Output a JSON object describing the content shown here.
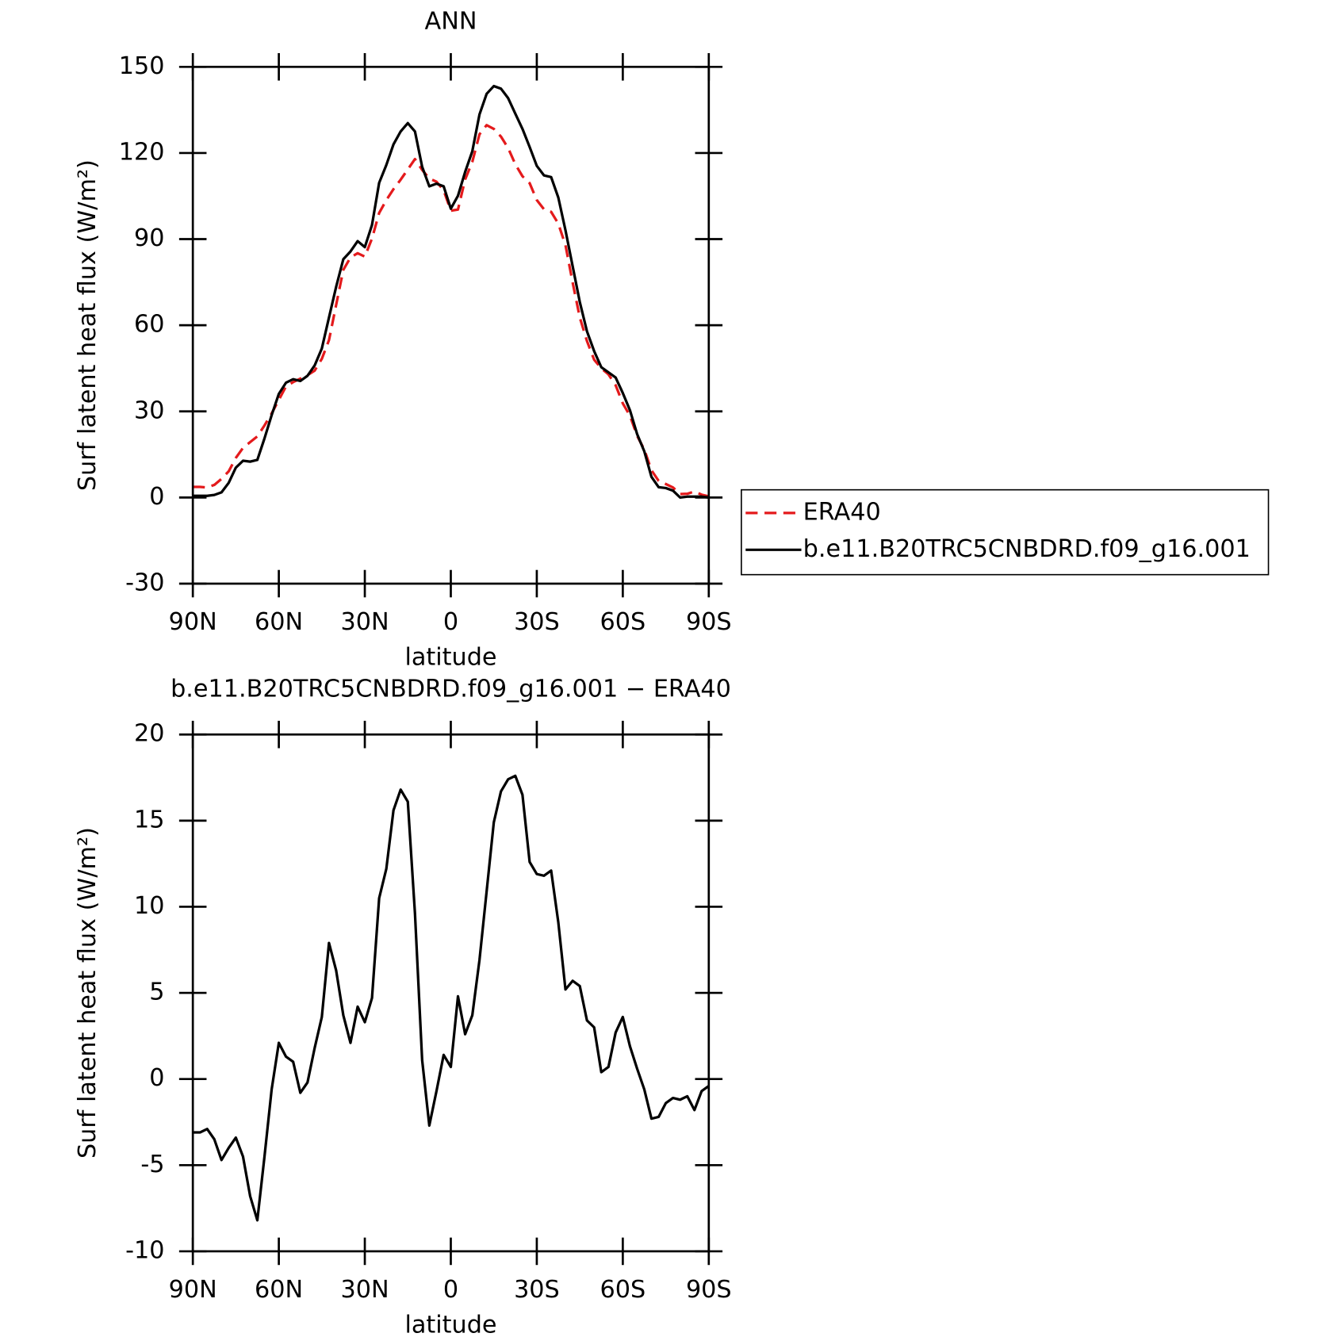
{
  "chart_data": [
    {
      "type": "line",
      "title": "ANN",
      "ylabel": "Surf latent heat flux (W/m²)",
      "xlabel": "latitude",
      "x": [
        90,
        87.5,
        85,
        82.5,
        80,
        77.5,
        75,
        72.5,
        70,
        67.5,
        65,
        62.5,
        60,
        57.5,
        55,
        52.5,
        50,
        47.5,
        45,
        42.5,
        40,
        37.5,
        35,
        32.5,
        30,
        27.5,
        25,
        22.5,
        20,
        17.5,
        15,
        12.5,
        10,
        7.5,
        5,
        2.5,
        0,
        -2.5,
        -5,
        -7.5,
        -10,
        -12.5,
        -15,
        -17.5,
        -20,
        -22.5,
        -25,
        -27.5,
        -30,
        -32.5,
        -35,
        -37.5,
        -40,
        -42.5,
        -45,
        -47.5,
        -50,
        -52.5,
        -55,
        -57.5,
        -60,
        -62.5,
        -65,
        -67.5,
        -70,
        -72.5,
        -75,
        -77.5,
        -80,
        -82.5,
        -85,
        -87.5,
        -90
      ],
      "series": [
        {
          "name": "ERA40",
          "color": "#e41a1c",
          "linestyle": "dashed",
          "values": [
            3.7,
            3.7,
            3.5,
            4.4,
            6.5,
            9.1,
            13.8,
            17.3,
            19.3,
            21.3,
            25.1,
            29.3,
            34.0,
            38.7,
            40.2,
            41.4,
            42.6,
            44.2,
            48.3,
            54.8,
            67.1,
            79.3,
            83.6,
            85.1,
            83.9,
            90.2,
            99.1,
            103.6,
            107.4,
            110.7,
            114.3,
            117.9,
            114.1,
            111.1,
            110.0,
            107.0,
            99.9,
            100.3,
            110.8,
            116.9,
            126.5,
            129.7,
            128.4,
            125.7,
            121.7,
            116.1,
            111.9,
            109.5,
            103.6,
            100.4,
            99.5,
            95.4,
            87.9,
            74.9,
            62.7,
            54.5,
            48.0,
            45.0,
            42.9,
            39.1,
            32.8,
            28.5,
            21.5,
            16.7,
            9.5,
            5.8,
            4.7,
            3.5,
            1.2,
            1.3,
            2.1,
            1.0,
            0.4
          ]
        },
        {
          "name": "b.e11.B20TRC5CNBDRD.f09_g16.001",
          "color": "#000000",
          "linestyle": "solid",
          "values": [
            0.6,
            0.6,
            0.6,
            0.9,
            1.8,
            5.1,
            10.4,
            12.8,
            12.5,
            13.1,
            20.6,
            28.7,
            36.1,
            40.0,
            41.2,
            40.6,
            42.4,
            46.0,
            51.9,
            62.7,
            73.4,
            83.0,
            85.7,
            89.3,
            87.2,
            94.9,
            109.6,
            115.8,
            123.0,
            127.5,
            130.4,
            127.5,
            115.2,
            108.4,
            109.3,
            108.4,
            100.6,
            105.1,
            113.4,
            120.6,
            133.4,
            140.6,
            143.3,
            142.4,
            139.1,
            133.7,
            128.4,
            122.1,
            115.5,
            112.2,
            111.6,
            104.5,
            93.1,
            80.6,
            68.1,
            57.9,
            51.0,
            45.4,
            43.6,
            41.8,
            36.4,
            30.4,
            22.1,
            16.1,
            7.2,
            3.6,
            3.3,
            2.4,
            0,
            0.3,
            0.3,
            0.3,
            0
          ]
        }
      ],
      "xlim": [
        90,
        -90
      ],
      "xticks": [
        {
          "value": 90,
          "label": "90N"
        },
        {
          "value": 60,
          "label": "60N"
        },
        {
          "value": 30,
          "label": "30N"
        },
        0,
        {
          "value": -30,
          "label": "30S"
        },
        {
          "value": -60,
          "label": "60S"
        },
        {
          "value": -90,
          "label": "90S"
        }
      ],
      "ylim": [
        -30,
        150
      ],
      "yticks": [
        -30,
        0,
        30,
        60,
        90,
        120,
        150
      ],
      "legend": "right"
    },
    {
      "type": "line",
      "title": "b.e11.B20TRC5CNBDRD.f09_g16.001 − ERA40",
      "ylabel": "Surf latent heat flux (W/m²)",
      "xlabel": "latitude",
      "x": [
        90,
        87.5,
        85,
        82.5,
        80,
        77.5,
        75,
        72.5,
        70,
        67.5,
        65,
        62.5,
        60,
        57.5,
        55,
        52.5,
        50,
        47.5,
        45,
        42.5,
        40,
        37.5,
        35,
        32.5,
        30,
        27.5,
        25,
        22.5,
        20,
        17.5,
        15,
        12.5,
        10,
        7.5,
        5,
        2.5,
        0,
        -2.5,
        -5,
        -7.5,
        -10,
        -12.5,
        -15,
        -17.5,
        -20,
        -22.5,
        -25,
        -27.5,
        -30,
        -32.5,
        -35,
        -37.5,
        -40,
        -42.5,
        -45,
        -47.5,
        -50,
        -52.5,
        -55,
        -57.5,
        -60,
        -62.5,
        -65,
        -67.5,
        -70,
        -72.5,
        -75,
        -77.5,
        -80,
        -82.5,
        -85,
        -87.5,
        -90
      ],
      "values": [
        -3.1,
        -3.1,
        -2.9,
        -3.5,
        -4.7,
        -4.0,
        -3.4,
        -4.5,
        -6.8,
        -8.2,
        -4.5,
        -0.6,
        2.1,
        1.3,
        1.0,
        -0.8,
        -0.2,
        1.8,
        3.6,
        7.9,
        6.3,
        3.7,
        2.1,
        4.2,
        3.3,
        4.7,
        10.5,
        12.2,
        15.6,
        16.8,
        16.1,
        9.6,
        1.1,
        -2.7,
        -0.7,
        1.4,
        0.7,
        4.8,
        2.6,
        3.7,
        6.9,
        10.9,
        14.9,
        16.7,
        17.4,
        17.6,
        16.5,
        12.6,
        11.9,
        11.8,
        12.1,
        9.1,
        5.2,
        5.7,
        5.4,
        3.4,
        3.0,
        0.4,
        0.7,
        2.7,
        3.6,
        1.9,
        0.6,
        -0.6,
        -2.3,
        -2.2,
        -1.4,
        -1.1,
        -1.2,
        -1.0,
        -1.8,
        -0.7,
        -0.4
      ],
      "color": "#000000",
      "xlim": [
        90,
        -90
      ],
      "xticks": [
        {
          "value": 90,
          "label": "90N"
        },
        {
          "value": 60,
          "label": "60N"
        },
        {
          "value": 30,
          "label": "30N"
        },
        0,
        {
          "value": -30,
          "label": "30S"
        },
        {
          "value": -60,
          "label": "60S"
        },
        {
          "value": -90,
          "label": "90S"
        }
      ],
      "ylim": [
        -10,
        20
      ],
      "yticks": [
        -10,
        -5,
        0,
        5,
        10,
        15,
        20
      ]
    }
  ]
}
